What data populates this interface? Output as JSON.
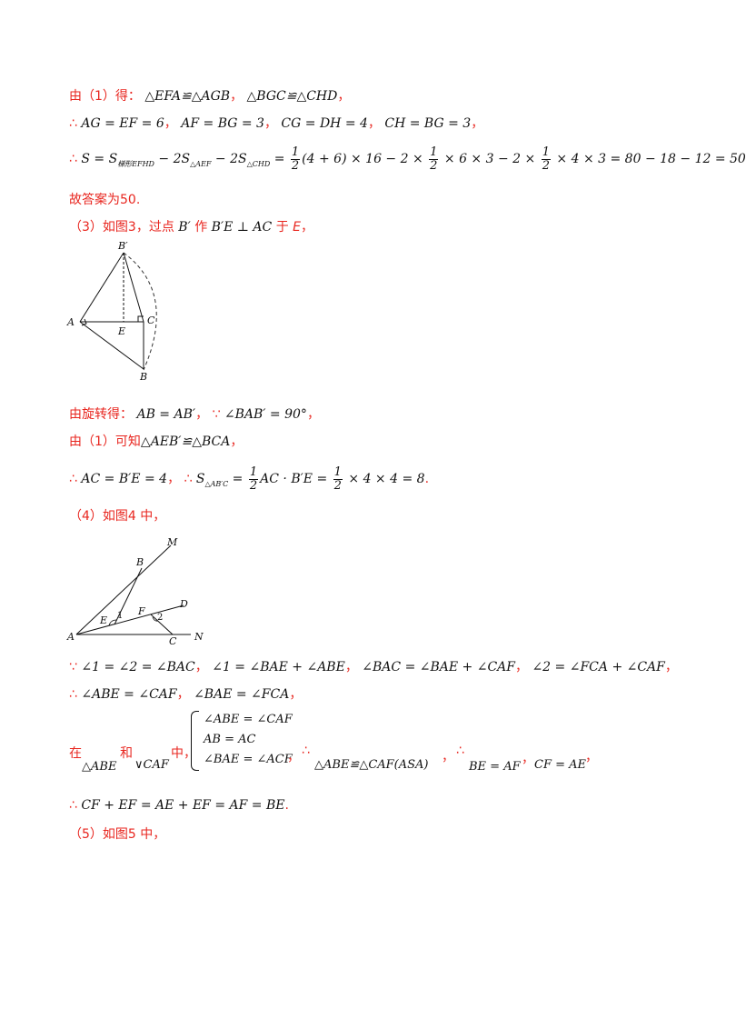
{
  "l1": {
    "a": "由（1）得：",
    "b": "△EFA≌△AGB",
    "c": "，",
    "d": "△BGC≌△CHD",
    "e": "，"
  },
  "l2": {
    "a": "∴",
    "b": "AG = EF = 6",
    "c": "，",
    "d": "AF = BG = 3",
    "e": "，",
    "f": "CG = DH = 4",
    "g": "，",
    "h": "CH = BG = 3",
    "i": "，"
  },
  "l3": {
    "a": "∴",
    "b": "S = S",
    "b_sub": "梯形EFHD",
    "c": " − 2S",
    "c_sub": "△AEF",
    "d": " − 2S",
    "d_sub": "△CHD",
    "e": " = ",
    "f1n": "1",
    "f1d": "2",
    "f2": "(4 + 6) × 16 − 2 × ",
    "f3n": "1",
    "f3d": "2",
    "f4": " × 6 × 3 − 2 × ",
    "f5n": "1",
    "f5d": "2",
    "f6": " × 4 × 3 = 80 − 18 − 12 = 50"
  },
  "l4": {
    "a": "故答案为50."
  },
  "l5": {
    "a": "（3）如图3，过点",
    "b": "B′",
    "c": "作",
    "d": "B′E ⊥ AC",
    "e": "于",
    "f": "E",
    "g": "，"
  },
  "fig3": {
    "labels": [
      "B′",
      "A",
      "E",
      "C",
      "B"
    ]
  },
  "l6": {
    "a": "由旋转得：",
    "b": "AB = AB′",
    "c": "，",
    "d": "∵",
    "e": "∠BAB′ = 90°",
    "f": "，"
  },
  "l7": {
    "a": "由（1）可知",
    "b": "△AEB′≌△BCA",
    "c": "，"
  },
  "l8": {
    "a": "∴",
    "b": "AC = B′E = 4",
    "c": "，",
    "d": "∴",
    "e": "S",
    "e_sub": "△AB′C",
    "f": " = ",
    "g1n": "1",
    "g1d": "2",
    "g2": "AC · B′E = ",
    "g3n": "1",
    "g3d": "2",
    "g4": " × 4 × 4 = 8",
    "h": "."
  },
  "l9": {
    "a": "（4）如图4 中，"
  },
  "fig4": {
    "labels": [
      "M",
      "B",
      "D",
      "F",
      "E",
      "1",
      "2",
      "A",
      "C",
      "N"
    ]
  },
  "l10": {
    "a": "∵",
    "b": "∠1 = ∠2 = ∠BAC",
    "c": "，",
    "d": "∠1 = ∠BAE + ∠ABE",
    "e": "，",
    "f": "∠BAC = ∠BAE + ∠CAF",
    "g": "，",
    "h": "∠2 = ∠FCA + ∠CAF",
    "i": "，"
  },
  "l11": {
    "a": "∴",
    "b": "∠ABE = ∠CAF",
    "c": "，",
    "d": "∠BAE = ∠FCA",
    "e": "，"
  },
  "l12": {
    "a": "在",
    "b": "△ABE",
    "c": "和",
    "d": "∨CAF",
    "e": "中，",
    "s1": "∠ABE = ∠CAF",
    "s2": "AB = AC",
    "s3": "∠BAE = ∠ACF",
    "f": "，",
    "g": "∴",
    "h": "△ABE≌△CAF(ASA)",
    "i": "，",
    "j": "∴",
    "k": "BE = AF",
    "l": "，",
    "m": "CF = AE",
    "n": "，"
  },
  "l13": {
    "a": "∴",
    "b": "CF + EF = AE + EF = AF = BE",
    "c": "."
  },
  "l14": {
    "a": "（5）如图5 中，"
  }
}
